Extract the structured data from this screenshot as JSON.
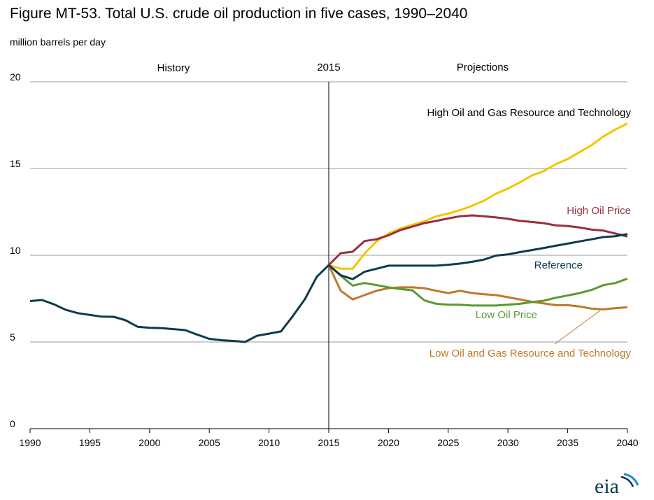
{
  "title": "Figure MT-53. Total U.S. crude oil production in five cases, 1990–2040",
  "unit_label": "million barrels per day",
  "logo_text": "eia",
  "chart_data": {
    "type": "line",
    "title": "Figure MT-53. Total U.S. crude oil production in five cases, 1990–2040",
    "ylabel": "million barrels per day",
    "xlim": [
      1990,
      2040
    ],
    "ylim": [
      0,
      20
    ],
    "x_ticks": [
      1990,
      1995,
      2000,
      2005,
      2010,
      2015,
      2020,
      2025,
      2030,
      2035,
      2040
    ],
    "y_ticks": [
      0,
      5,
      10,
      15,
      20
    ],
    "grid": "horizontal",
    "divider": {
      "x": 2015,
      "label": "2015"
    },
    "regions": {
      "history": "History",
      "projections": "Projections"
    },
    "history": {
      "color": "#0d3a4f",
      "x": [
        1990,
        1991,
        1992,
        1993,
        1994,
        1995,
        1996,
        1997,
        1998,
        1999,
        2000,
        2001,
        2002,
        2003,
        2004,
        2005,
        2006,
        2007,
        2008,
        2009,
        2010,
        2011,
        2012,
        2013,
        2014,
        2015
      ],
      "values": [
        7.36,
        7.42,
        7.17,
        6.85,
        6.66,
        6.56,
        6.46,
        6.45,
        6.25,
        5.88,
        5.82,
        5.8,
        5.74,
        5.68,
        5.42,
        5.18,
        5.1,
        5.06,
        5.0,
        5.36,
        5.48,
        5.61,
        6.5,
        7.46,
        8.76,
        9.43
      ]
    },
    "series": [
      {
        "name": "High Oil and Gas Resource and Technology",
        "color": "#f5c400",
        "x": [
          2015,
          2016,
          2017,
          2018,
          2019,
          2020,
          2021,
          2022,
          2023,
          2024,
          2025,
          2026,
          2027,
          2028,
          2029,
          2030,
          2031,
          2032,
          2033,
          2034,
          2035,
          2036,
          2037,
          2038,
          2039,
          2040
        ],
        "values": [
          9.43,
          9.22,
          9.22,
          10.1,
          10.8,
          11.25,
          11.55,
          11.75,
          11.95,
          12.25,
          12.4,
          12.6,
          12.85,
          13.15,
          13.55,
          13.85,
          14.2,
          14.6,
          14.85,
          15.25,
          15.55,
          15.95,
          16.35,
          16.85,
          17.25,
          17.6
        ]
      },
      {
        "name": "High Oil Price",
        "color": "#9b2d3f",
        "x": [
          2015,
          2016,
          2017,
          2018,
          2019,
          2020,
          2021,
          2022,
          2023,
          2024,
          2025,
          2026,
          2027,
          2028,
          2029,
          2030,
          2031,
          2032,
          2033,
          2034,
          2035,
          2036,
          2037,
          2038,
          2039,
          2040
        ],
        "values": [
          9.43,
          10.12,
          10.2,
          10.82,
          10.92,
          11.15,
          11.45,
          11.65,
          11.85,
          11.98,
          12.12,
          12.25,
          12.3,
          12.25,
          12.18,
          12.1,
          11.98,
          11.92,
          11.85,
          11.72,
          11.68,
          11.6,
          11.48,
          11.42,
          11.25,
          11.08
        ]
      },
      {
        "name": "Reference",
        "color": "#0d3a4f",
        "x": [
          2015,
          2016,
          2017,
          2018,
          2019,
          2020,
          2021,
          2022,
          2023,
          2024,
          2025,
          2026,
          2027,
          2028,
          2029,
          2030,
          2031,
          2032,
          2033,
          2034,
          2035,
          2036,
          2037,
          2038,
          2039,
          2040
        ],
        "values": [
          9.43,
          8.85,
          8.62,
          9.05,
          9.22,
          9.4,
          9.4,
          9.4,
          9.4,
          9.4,
          9.45,
          9.52,
          9.62,
          9.75,
          9.98,
          10.05,
          10.18,
          10.3,
          10.42,
          10.55,
          10.67,
          10.8,
          10.92,
          11.05,
          11.1,
          11.22
        ]
      },
      {
        "name": "Low Oil Price",
        "color": "#5a9a31",
        "x": [
          2015,
          2016,
          2017,
          2018,
          2019,
          2020,
          2021,
          2022,
          2023,
          2024,
          2025,
          2026,
          2027,
          2028,
          2029,
          2030,
          2031,
          2032,
          2033,
          2034,
          2035,
          2036,
          2037,
          2038,
          2039,
          2040
        ],
        "values": [
          9.43,
          8.82,
          8.25,
          8.4,
          8.28,
          8.15,
          8.05,
          7.98,
          7.4,
          7.2,
          7.15,
          7.15,
          7.1,
          7.1,
          7.1,
          7.15,
          7.2,
          7.3,
          7.38,
          7.55,
          7.68,
          7.82,
          8.0,
          8.28,
          8.4,
          8.65
        ]
      },
      {
        "name": "Low Oil and Gas Resource and Technology",
        "color": "#c0782a",
        "x": [
          2015,
          2016,
          2017,
          2018,
          2019,
          2020,
          2021,
          2022,
          2023,
          2024,
          2025,
          2026,
          2027,
          2028,
          2029,
          2030,
          2031,
          2032,
          2033,
          2034,
          2035,
          2036,
          2037,
          2038,
          2039,
          2040
        ],
        "values": [
          9.43,
          7.95,
          7.45,
          7.7,
          7.95,
          8.1,
          8.15,
          8.15,
          8.1,
          7.95,
          7.82,
          7.95,
          7.82,
          7.75,
          7.7,
          7.58,
          7.45,
          7.32,
          7.22,
          7.12,
          7.12,
          7.05,
          6.92,
          6.88,
          6.95,
          7.0
        ]
      }
    ]
  }
}
